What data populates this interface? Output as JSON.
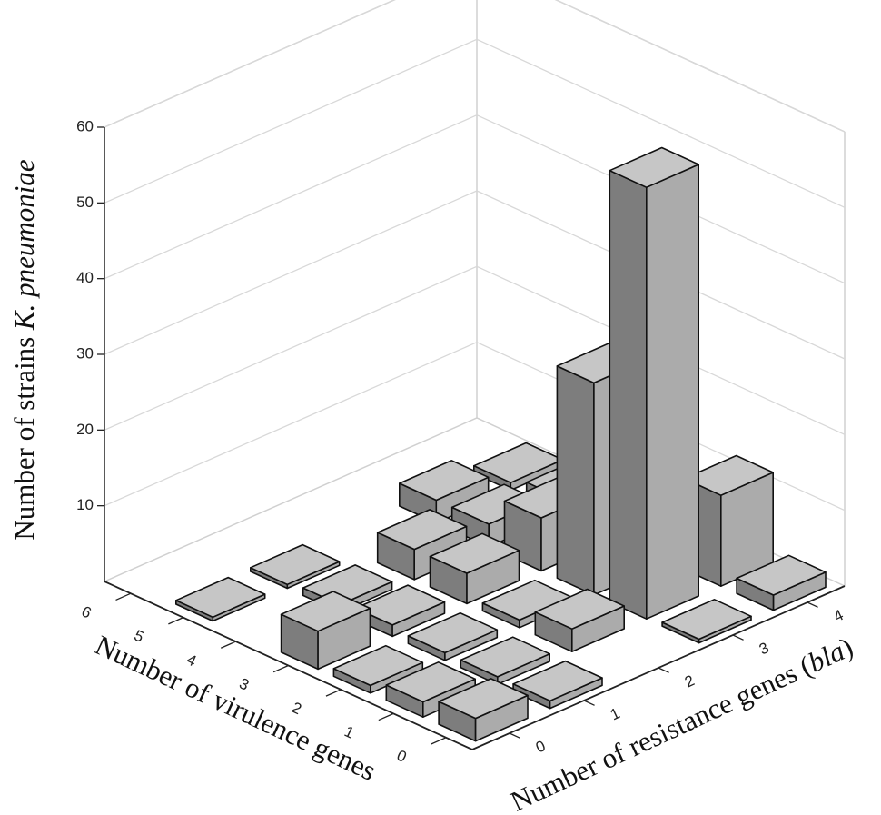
{
  "chart_data": {
    "type": "bar3d",
    "xlabel": "Number of virulence genes",
    "ylabel": [
      "Number of resistance genes (",
      "bla",
      ")"
    ],
    "zlabel": [
      "Number of strains ",
      "K. pneumoniae"
    ],
    "x": [
      0,
      1,
      2,
      3,
      4,
      5,
      6
    ],
    "y": [
      0,
      1,
      2,
      3,
      4
    ],
    "values": [
      [
        3,
        1,
        null,
        0.5,
        2
      ],
      [
        2,
        1,
        3,
        57,
        12
      ],
      [
        1,
        1,
        1,
        28,
        null
      ],
      [
        5,
        1.5,
        4,
        7,
        null
      ],
      [
        null,
        1,
        4,
        3,
        2
      ],
      [
        0.5,
        0.5,
        null,
        3,
        1
      ],
      [
        null,
        null,
        null,
        null,
        null
      ]
    ],
    "face_colors": {
      "top": "#c6c6c6",
      "left": "#7d7d7d",
      "right": "#ababab"
    },
    "zlim": [
      0,
      60
    ],
    "zticks": [
      10,
      20,
      30,
      40,
      50,
      60
    ],
    "grid": true
  }
}
